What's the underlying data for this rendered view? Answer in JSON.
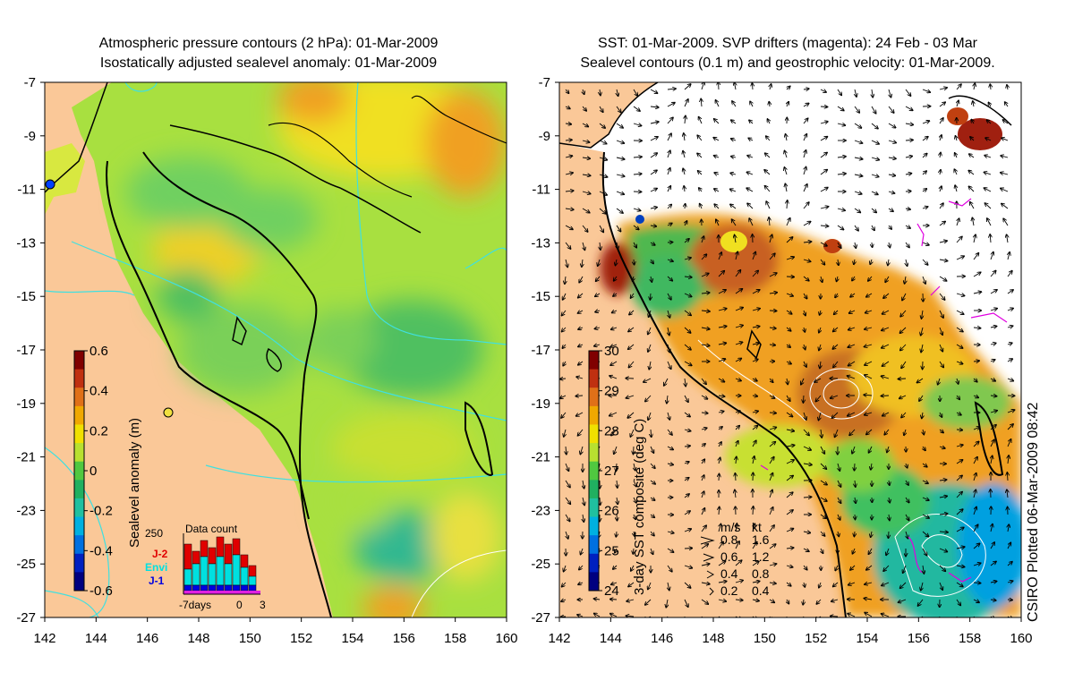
{
  "left_panel": {
    "title_line1": "Atmospheric pressure contours (2 hPa): 01-Mar-2009",
    "title_line2": "Isostatically adjusted sealevel anomaly: 01-Mar-2009",
    "y_ticks": [
      "-7",
      "-9",
      "-11",
      "-13",
      "-15",
      "-17",
      "-19",
      "-21",
      "-23",
      "-25",
      "-27"
    ],
    "x_ticks": [
      "142",
      "144",
      "146",
      "148",
      "150",
      "152",
      "154",
      "156",
      "158",
      "160"
    ],
    "colorbar": {
      "label": "Sealevel anomaly (m)",
      "ticks": [
        "0.6",
        "0.4",
        "0.2",
        "0",
        "-0.2",
        "-0.4",
        "-0.6"
      ],
      "colors": [
        "#800000",
        "#c03010",
        "#e07018",
        "#f0a800",
        "#f0e000",
        "#b8e030",
        "#50c840",
        "#20b060",
        "#20c0a0",
        "#00b0e0",
        "#0070e0",
        "#0020c0",
        "#000080"
      ]
    },
    "data_count": {
      "title": "Data count",
      "ymax_label": "250",
      "x_labels": [
        "-7days",
        "0",
        "3"
      ],
      "legend": [
        {
          "name": "J-2",
          "color": "#e00000"
        },
        {
          "name": "Envi",
          "color": "#00e0e0"
        },
        {
          "name": "J-1",
          "color": "#0000e0"
        }
      ]
    }
  },
  "right_panel": {
    "title_line1": "SST: 01-Mar-2009. SVP drifters (magenta): 24 Feb - 03 Mar",
    "title_line2": "Sealevel contours (0.1 m) and geostrophic velocity: 01-Mar-2009.",
    "y_ticks": [
      "-7",
      "-9",
      "-11",
      "-13",
      "-15",
      "-17",
      "-19",
      "-21",
      "-23",
      "-25",
      "-27"
    ],
    "x_ticks": [
      "142",
      "144",
      "146",
      "148",
      "150",
      "152",
      "154",
      "156",
      "158",
      "160"
    ],
    "colorbar": {
      "label": "3-day SST composite (deg C)",
      "ticks": [
        "30",
        "29",
        "28",
        "27",
        "26",
        "25",
        "24"
      ],
      "colors": [
        "#800000",
        "#c03010",
        "#e07018",
        "#f0a800",
        "#f0e000",
        "#b8e030",
        "#50c840",
        "#20b060",
        "#20c0a0",
        "#00b0e0",
        "#0070e0",
        "#0020c0",
        "#000080"
      ]
    },
    "velocity_key": {
      "header_ms": "m/s",
      "header_kt": "kt",
      "rows": [
        {
          "ms": "0.8",
          "kt": "1.6"
        },
        {
          "ms": "0.6",
          "kt": "1.2"
        },
        {
          "ms": "0.4",
          "kt": "0.8"
        },
        {
          "ms": "0.2",
          "kt": "0.4"
        }
      ]
    }
  },
  "credit": "CSIRO Plotted 06-Mar-2009 08:42",
  "colors": {
    "land": "#fac898",
    "field_green": "#7ed850",
    "field_yellow": "#e8e840",
    "field_orange": "#f0a020",
    "contour_cyan": "#40e0e0",
    "coast": "#000000",
    "drifter": "#e000e0"
  }
}
